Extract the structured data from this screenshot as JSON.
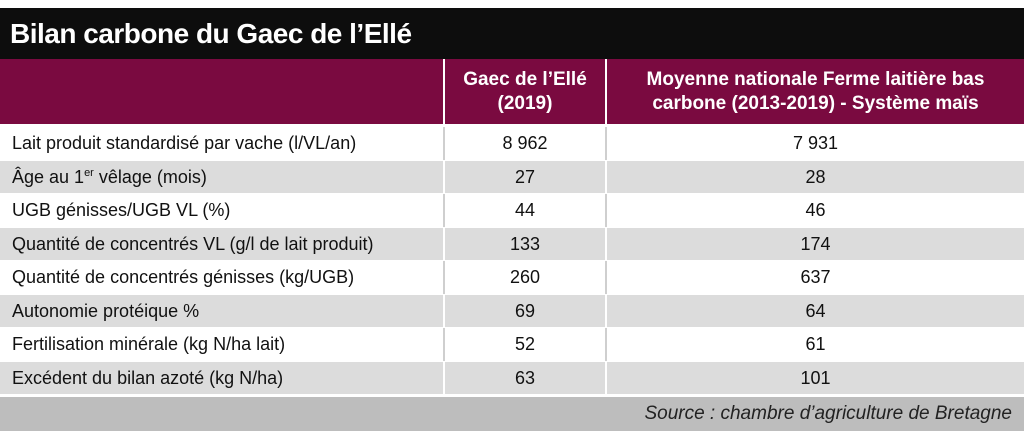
{
  "title": "Bilan carbone du Gaec de l’Ellé",
  "headers": {
    "col1_line1": "Gaec de l’Ellé",
    "col1_line2": "(2019)",
    "col2_line1": "Moyenne nationale Ferme laitière bas",
    "col2_line2": "carbone (2013-2019) - Système maïs"
  },
  "rows": [
    {
      "label": "Lait produit standardisé par vache (l/VL/an)",
      "v1": "8 962",
      "v2": "7 931"
    },
    {
      "label_pre": "Âge au 1",
      "label_sup": "er",
      "label_post": " vêlage (mois)",
      "v1": "27",
      "v2": "28"
    },
    {
      "label": "UGB génisses/UGB VL (%)",
      "v1": "44",
      "v2": "46"
    },
    {
      "label": "Quantité de concentrés VL (g/l de lait produit)",
      "v1": "133",
      "v2": "174"
    },
    {
      "label": "Quantité de concentrés génisses (kg/UGB)",
      "v1": "260",
      "v2": "637"
    },
    {
      "label": "Autonomie protéique %",
      "v1": "69",
      "v2": "64"
    },
    {
      "label": "Fertilisation minérale (kg N/ha lait)",
      "v1": "52",
      "v2": "61"
    },
    {
      "label": "Excédent du bilan azoté (kg N/ha)",
      "v1": "63",
      "v2": "101"
    }
  ],
  "source": "Source : chambre d’agriculture de Bretagne",
  "colors": {
    "title_bg": "#0d0d0d",
    "header_bg": "#7a0a40",
    "stripe": "#dcdcdc",
    "source_bg": "#bdbdbd"
  }
}
